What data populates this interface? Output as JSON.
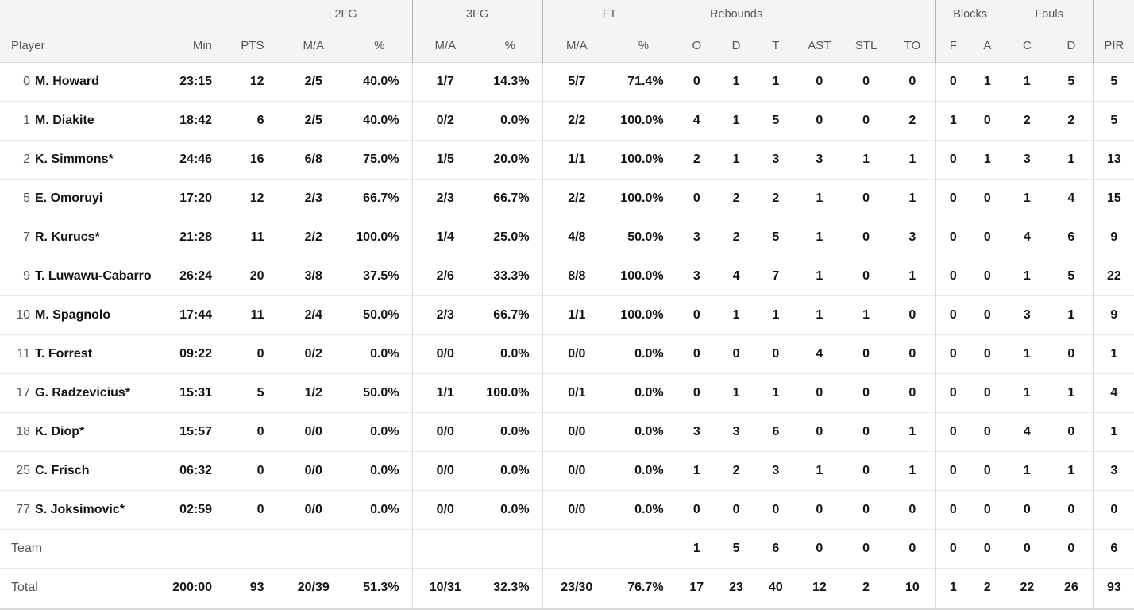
{
  "colors": {
    "header_bg": "#f4f4f5",
    "body_bg": "#ffffff",
    "text_dark": "#121317",
    "text_gray": "#55565b",
    "header_divider": "#b5b6b9",
    "body_divider": "#dadbdd",
    "row_divider": "#e9eaeb",
    "bottom_strip": "#d8d9db"
  },
  "table": {
    "groups": {
      "fg2": "2FG",
      "fg3": "3FG",
      "ft": "FT",
      "rebounds": "Rebounds",
      "blocks": "Blocks",
      "fouls": "Fouls"
    },
    "columns": [
      "Player",
      "Min",
      "PTS",
      "M/A",
      "%",
      "M/A",
      "%",
      "M/A",
      "%",
      "O",
      "D",
      "T",
      "AST",
      "STL",
      "TO",
      "F",
      "A",
      "C",
      "D",
      "PIR"
    ],
    "rows": [
      {
        "num": "0",
        "name": "M. Howard",
        "stats": [
          "23:15",
          "12",
          "2/5",
          "40.0%",
          "1/7",
          "14.3%",
          "5/7",
          "71.4%",
          "0",
          "1",
          "1",
          "0",
          "0",
          "0",
          "0",
          "1",
          "1",
          "5",
          "5"
        ]
      },
      {
        "num": "1",
        "name": "M. Diakite",
        "stats": [
          "18:42",
          "6",
          "2/5",
          "40.0%",
          "0/2",
          "0.0%",
          "2/2",
          "100.0%",
          "4",
          "1",
          "5",
          "0",
          "0",
          "2",
          "1",
          "0",
          "2",
          "2",
          "5"
        ]
      },
      {
        "num": "2",
        "name": "K. Simmons*",
        "stats": [
          "24:46",
          "16",
          "6/8",
          "75.0%",
          "1/5",
          "20.0%",
          "1/1",
          "100.0%",
          "2",
          "1",
          "3",
          "3",
          "1",
          "1",
          "0",
          "1",
          "3",
          "1",
          "13"
        ]
      },
      {
        "num": "5",
        "name": "E. Omoruyi",
        "stats": [
          "17:20",
          "12",
          "2/3",
          "66.7%",
          "2/3",
          "66.7%",
          "2/2",
          "100.0%",
          "0",
          "2",
          "2",
          "1",
          "0",
          "1",
          "0",
          "0",
          "1",
          "4",
          "15"
        ]
      },
      {
        "num": "7",
        "name": "R. Kurucs*",
        "stats": [
          "21:28",
          "11",
          "2/2",
          "100.0%",
          "1/4",
          "25.0%",
          "4/8",
          "50.0%",
          "3",
          "2",
          "5",
          "1",
          "0",
          "3",
          "0",
          "0",
          "4",
          "6",
          "9"
        ]
      },
      {
        "num": "9",
        "name": "T. Luwawu-Cabarrot",
        "stats": [
          "26:24",
          "20",
          "3/8",
          "37.5%",
          "2/6",
          "33.3%",
          "8/8",
          "100.0%",
          "3",
          "4",
          "7",
          "1",
          "0",
          "1",
          "0",
          "0",
          "1",
          "5",
          "22"
        ]
      },
      {
        "num": "10",
        "name": "M. Spagnolo",
        "stats": [
          "17:44",
          "11",
          "2/4",
          "50.0%",
          "2/3",
          "66.7%",
          "1/1",
          "100.0%",
          "0",
          "1",
          "1",
          "1",
          "1",
          "0",
          "0",
          "0",
          "3",
          "1",
          "9"
        ]
      },
      {
        "num": "11",
        "name": "T. Forrest",
        "stats": [
          "09:22",
          "0",
          "0/2",
          "0.0%",
          "0/0",
          "0.0%",
          "0/0",
          "0.0%",
          "0",
          "0",
          "0",
          "4",
          "0",
          "0",
          "0",
          "0",
          "1",
          "0",
          "1"
        ]
      },
      {
        "num": "17",
        "name": "G. Radzevicius*",
        "stats": [
          "15:31",
          "5",
          "1/2",
          "50.0%",
          "1/1",
          "100.0%",
          "0/1",
          "0.0%",
          "0",
          "1",
          "1",
          "0",
          "0",
          "0",
          "0",
          "0",
          "1",
          "1",
          "4"
        ]
      },
      {
        "num": "18",
        "name": "K. Diop*",
        "stats": [
          "15:57",
          "0",
          "0/0",
          "0.0%",
          "0/0",
          "0.0%",
          "0/0",
          "0.0%",
          "3",
          "3",
          "6",
          "0",
          "0",
          "1",
          "0",
          "0",
          "4",
          "0",
          "1"
        ]
      },
      {
        "num": "25",
        "name": "C. Frisch",
        "stats": [
          "06:32",
          "0",
          "0/0",
          "0.0%",
          "0/0",
          "0.0%",
          "0/0",
          "0.0%",
          "1",
          "2",
          "3",
          "1",
          "0",
          "1",
          "0",
          "0",
          "1",
          "1",
          "3"
        ]
      },
      {
        "num": "77",
        "name": "S. Joksimovic*",
        "stats": [
          "02:59",
          "0",
          "0/0",
          "0.0%",
          "0/0",
          "0.0%",
          "0/0",
          "0.0%",
          "0",
          "0",
          "0",
          "0",
          "0",
          "0",
          "0",
          "0",
          "0",
          "0",
          "0"
        ]
      }
    ],
    "team_row": {
      "label": "Team",
      "stats": [
        "",
        "",
        "",
        "",
        "",
        "",
        "",
        "",
        "1",
        "5",
        "6",
        "0",
        "0",
        "0",
        "0",
        "0",
        "0",
        "0",
        "6"
      ]
    },
    "total_row": {
      "label": "Total",
      "stats": [
        "200:00",
        "93",
        "20/39",
        "51.3%",
        "10/31",
        "32.3%",
        "23/30",
        "76.7%",
        "17",
        "23",
        "40",
        "12",
        "2",
        "10",
        "1",
        "2",
        "22",
        "26",
        "93"
      ]
    }
  }
}
